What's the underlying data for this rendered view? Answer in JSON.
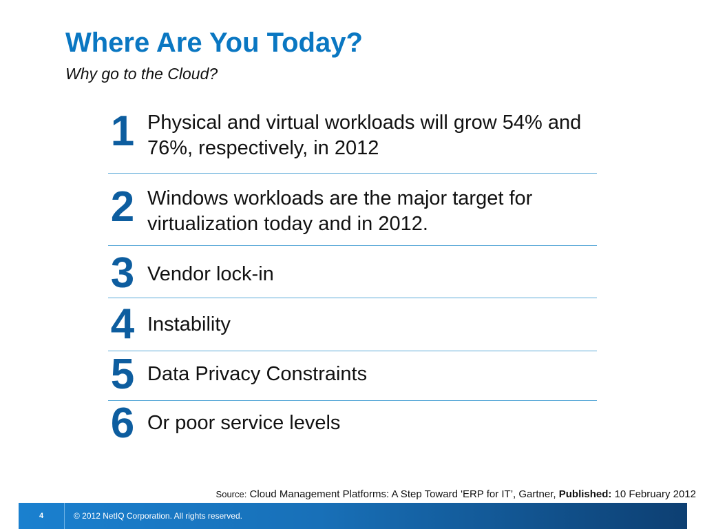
{
  "header": {
    "title": "Where Are You Today?",
    "subtitle": "Why go to the Cloud?"
  },
  "items": [
    {
      "number": "1",
      "text": "Physical and virtual workloads will grow 54% and 76%, respectively, in 2012"
    },
    {
      "number": "2",
      "text": "Windows workloads are the major target for virtualization today and in 2012."
    },
    {
      "number": "3",
      "text": "Vendor lock-in"
    },
    {
      "number": "4",
      "text": "Instability"
    },
    {
      "number": "5",
      "text": "Data Privacy Constraints"
    },
    {
      "number": "6",
      "text": "Or poor service levels"
    }
  ],
  "source": {
    "label": "Source:",
    "text": "Cloud Management Platforms: A Step Toward 'ERP for IT’, Gartner,",
    "published_label": "Published:",
    "published_date": "10 February 2012"
  },
  "footer": {
    "page_number": "4",
    "copyright": "© 2012 NetIQ Corporation.  All rights reserved."
  },
  "colors": {
    "title": "#0a77c2",
    "numbers": "#0d5d9f",
    "divider": "#5aa9d8",
    "footer_bar": "#1a80cf"
  }
}
